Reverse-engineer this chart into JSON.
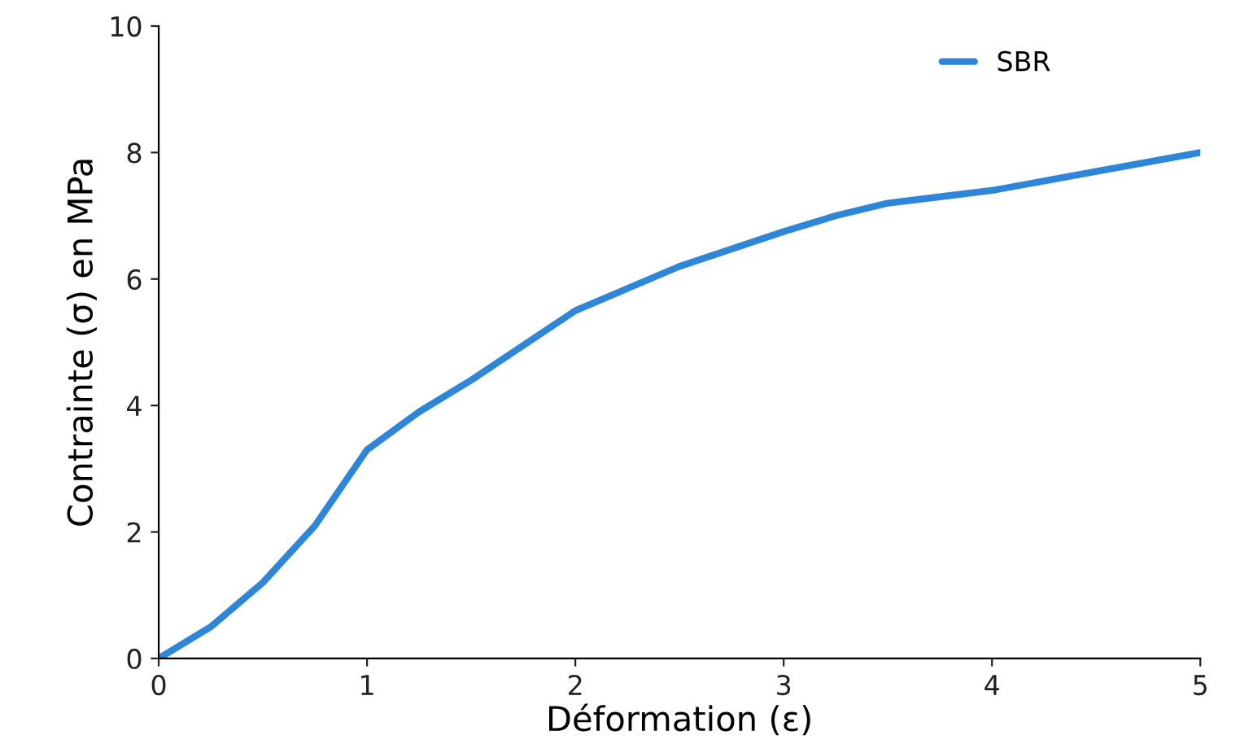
{
  "chart_data": {
    "type": "line",
    "xlabel": "Déformation (ε)",
    "ylabel": "Contrainte (σ) en MPa",
    "xlim": [
      0,
      5
    ],
    "ylim": [
      0,
      10
    ],
    "xticks": [
      0,
      1,
      2,
      3,
      4,
      5
    ],
    "yticks": [
      0,
      2,
      4,
      6,
      8,
      10
    ],
    "grid": false,
    "legend": "top right",
    "marker": "none",
    "line_style": "solid",
    "series": [
      {
        "name": "SBR",
        "color": "#2e86d9",
        "x": [
          0,
          0.25,
          0.5,
          0.75,
          1,
          1.25,
          1.5,
          2,
          2.5,
          3,
          3.25,
          3.5,
          3.75,
          4,
          4.5,
          5
        ],
        "values": [
          0,
          0.5,
          1.2,
          2.1,
          3.3,
          3.9,
          4.4,
          5.5,
          6.2,
          6.75,
          7.0,
          7.2,
          7.3,
          7.4,
          7.7,
          8.0
        ]
      }
    ]
  }
}
